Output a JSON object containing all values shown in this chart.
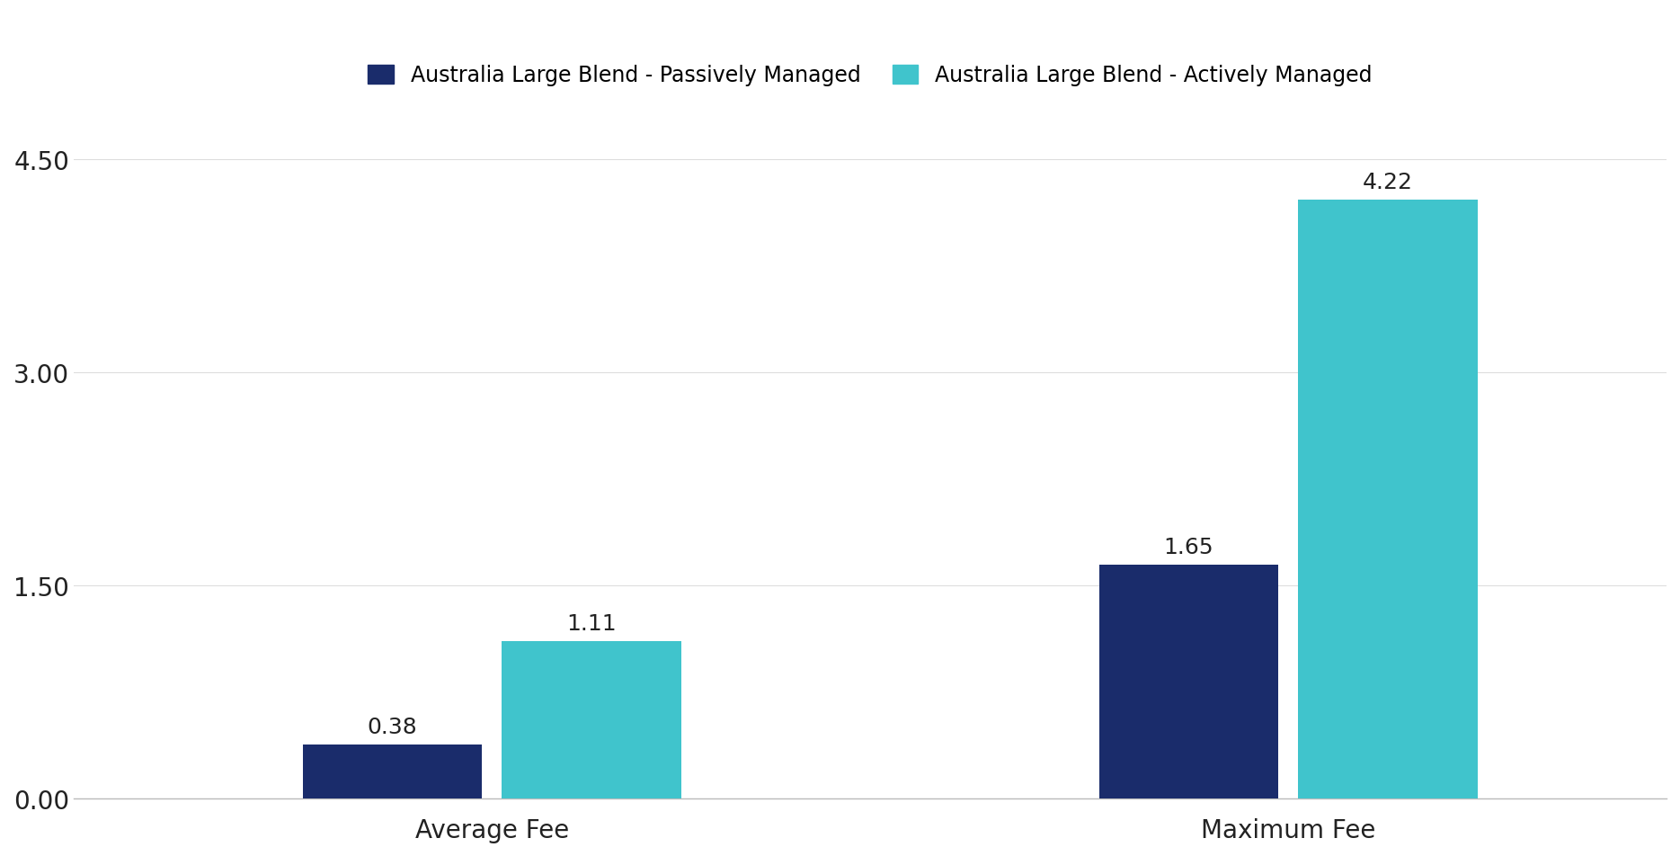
{
  "categories": [
    "Average Fee",
    "Maximum Fee"
  ],
  "passive_values": [
    0.38,
    1.65
  ],
  "active_values": [
    1.11,
    4.22
  ],
  "passive_color": "#1a2c6b",
  "active_color": "#40c4cc",
  "passive_label": "Australia Large Blend - Passively Managed",
  "active_label": "Australia Large Blend - Actively Managed",
  "ylim": [
    0,
    4.75
  ],
  "yticks": [
    0.0,
    1.5,
    3.0,
    4.5
  ],
  "ytick_labels": [
    "0.00",
    "1.50",
    "3.00",
    "4.50"
  ],
  "bar_width": 0.18,
  "background_color": "#ffffff",
  "label_fontsize": 20,
  "tick_fontsize": 20,
  "legend_fontsize": 17,
  "annotation_fontsize": 18,
  "group_centers": [
    0.42,
    1.22
  ],
  "xlim": [
    0.0,
    1.6
  ]
}
